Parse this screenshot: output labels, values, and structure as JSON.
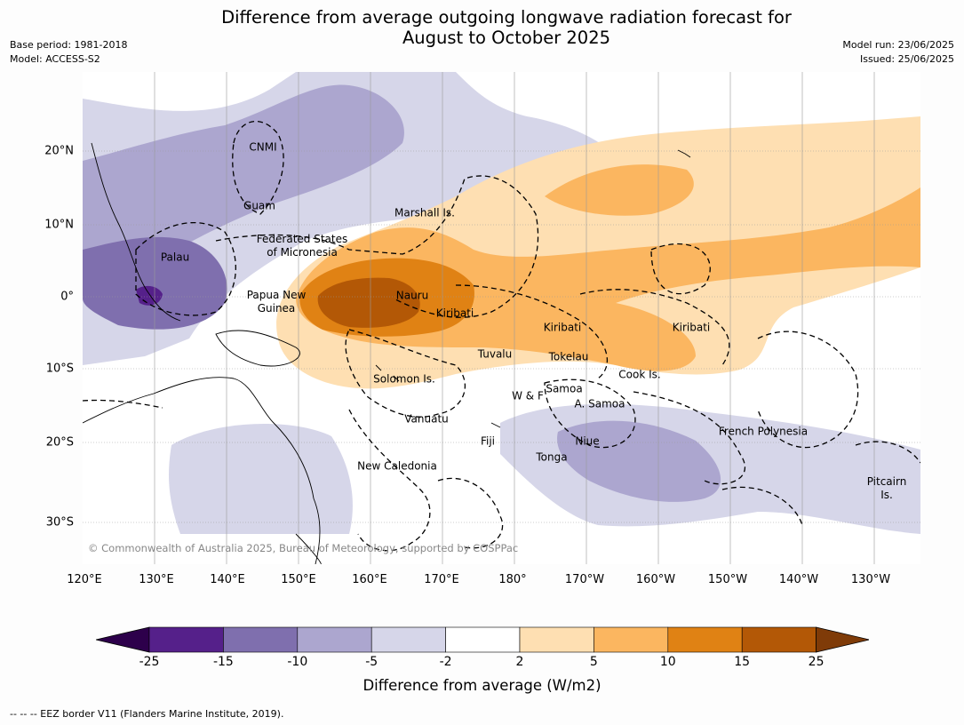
{
  "title": {
    "line1": "Difference from average outgoing longwave radiation forecast for",
    "line2": "August to October 2025"
  },
  "meta": {
    "base_period": "Base period: 1981-2018",
    "model": "Model: ACCESS-S2",
    "model_run": "Model run: 23/06/2025",
    "issued": "Issued: 25/06/2025"
  },
  "map": {
    "lon_labels": [
      "120°E",
      "130°E",
      "140°E",
      "150°E",
      "160°E",
      "170°E",
      "180°",
      "170°W",
      "160°W",
      "150°W",
      "140°W",
      "130°W"
    ],
    "lat_labels": [
      "20°N",
      "10°N",
      "0°",
      "10°S",
      "20°S",
      "30°S"
    ],
    "copyright": "© Commonwealth of Australia 2025, Bureau of Meteorology, supported by COSPPac",
    "regions": [
      "CNMI",
      "Guam",
      "Marshall Is.",
      "Federated States\nof Micronesia",
      "Palau",
      "Papua New\nGuinea",
      "Nauru",
      "Kiribati",
      "Kiribati",
      "Kiribati",
      "Tuvalu",
      "Tokelau",
      "Cook Is.",
      "Solomon Is.",
      "Samoa",
      "W & F",
      "A. Samoa",
      "Vanuatu",
      "Fiji",
      "Niue",
      "Tonga",
      "French Polynesia",
      "New Caledonia",
      "Pitcairn\nIs."
    ]
  },
  "colorbar": {
    "ticks": [
      "-25",
      "-15",
      "-10",
      "-5",
      "-2",
      "2",
      "5",
      "10",
      "15",
      "25"
    ],
    "label": "Difference from average (W/m2)",
    "colors": [
      "#55208a",
      "#7f6fae",
      "#aca6cf",
      "#d6d6e9",
      "#ffffff",
      "#fedfb2",
      "#fbb660",
      "#e08214",
      "#b35806"
    ],
    "ext_low": "#2d004b",
    "ext_high": "#7f3b08"
  },
  "footnote": "--  --  -- EEZ border V11 (Flanders Marine Institute, 2019)."
}
